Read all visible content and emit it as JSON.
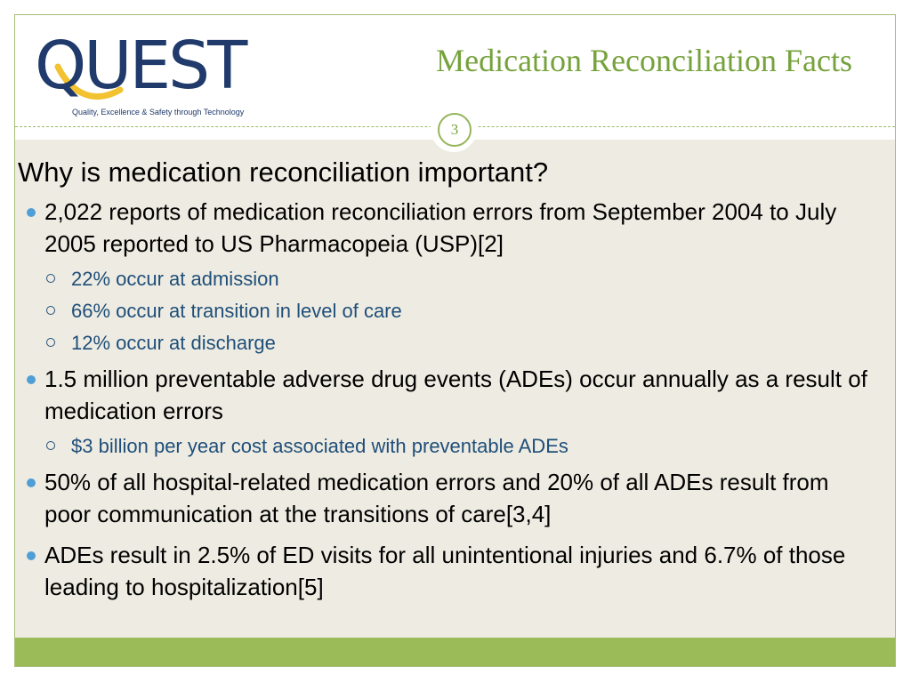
{
  "logo": {
    "wordmark": "QUEST",
    "tagline": "Quality, Excellence & Safety through Technology"
  },
  "slide": {
    "title": "Medication Reconciliation Facts",
    "page_number": "3"
  },
  "content": {
    "question": "Why is medication reconciliation important?",
    "bullets": [
      {
        "text": "2,022 reports of medication reconciliation errors from September 2004 to July 2005 reported to US Pharmacopeia (USP)[2]",
        "subs": [
          "22% occur at admission",
          "66% occur at transition in level of care",
          "12% occur at discharge"
        ]
      },
      {
        "text": "1.5 million preventable adverse drug events (ADEs) occur annually as a result of medication errors",
        "subs": [
          "$3 billion per year cost associated with preventable ADEs"
        ]
      },
      {
        "text": "50% of all hospital-related medication errors and 20% of all ADEs result from poor communication at the transitions of care[3,4]",
        "subs": []
      },
      {
        "text": "ADEs result in 2.5% of ED visits for all unintentional injuries and 6.7% of those leading to hospitalization[5]",
        "subs": []
      }
    ]
  },
  "colors": {
    "accent_green": "#76a23c",
    "footer_green": "#9bbb59",
    "body_background": "#eeece2",
    "logo_navy": "#1f3a6b",
    "logo_yellow": "#f2c230",
    "bullet_blue": "#4f9fd6",
    "sub_text_blue": "#1f4e79"
  }
}
